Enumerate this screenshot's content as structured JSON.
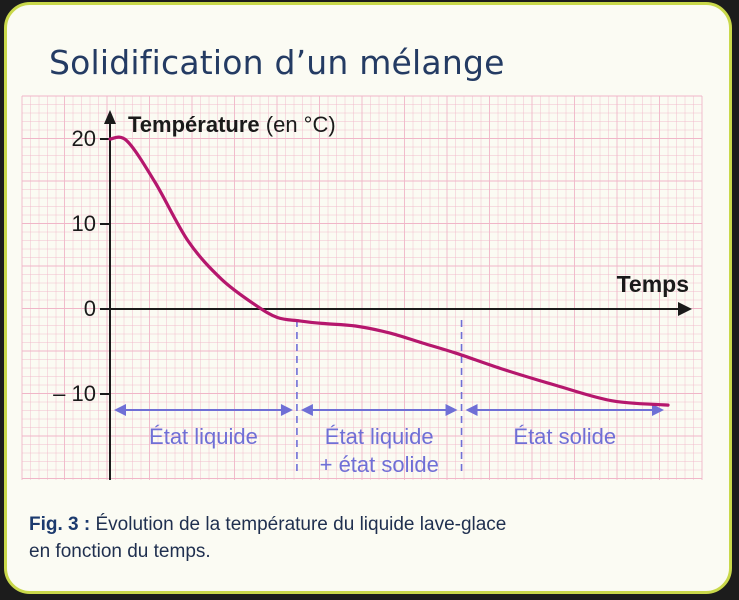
{
  "title": "Solidification d’un mélange",
  "caption": {
    "label": "Fig. 3 :",
    "line1": " Évolution de la température du liquide lave-glace",
    "line2": "en fonction du temps."
  },
  "colors": {
    "curve": "#b5176d",
    "arrows": "#6f6fd6",
    "axis": "#1a1a1a",
    "grid": "#f0b6c8",
    "frame": "#c9d84a",
    "title": "#243b63"
  },
  "chart_data": {
    "type": "line",
    "ylabel_bold": "Température",
    "ylabel_unit": " (en °C)",
    "xlabel": "Temps",
    "y_ticks": [
      {
        "value": 20,
        "label": "20"
      },
      {
        "value": 10,
        "label": "10"
      },
      {
        "value": 0,
        "label": "0"
      },
      {
        "value": -10,
        "label": "– 10"
      }
    ],
    "ylim": [
      -17,
      23
    ],
    "xlim": [
      0,
      100
    ],
    "grid": true,
    "series": [
      {
        "x": [
          0,
          3,
          8,
          14,
          20,
          26,
          30,
          34,
          38,
          44,
          50,
          56,
          62,
          70,
          80,
          90,
          100
        ],
        "y": [
          20,
          19.8,
          15,
          8,
          3.5,
          0.5,
          -1.0,
          -1.4,
          -1.7,
          -2.0,
          -2.8,
          -4.0,
          -5.2,
          -7.0,
          -9.0,
          -10.8,
          -11.3
        ]
      }
    ],
    "phases": [
      {
        "label": "État liquide",
        "x_start": 0,
        "x_end": 33.5
      },
      {
        "label_line1": "État liquide",
        "label_line2": "+ état solide",
        "x_start": 33.5,
        "x_end": 63
      },
      {
        "label": "État solide",
        "x_start": 63,
        "x_end": 100
      }
    ]
  }
}
